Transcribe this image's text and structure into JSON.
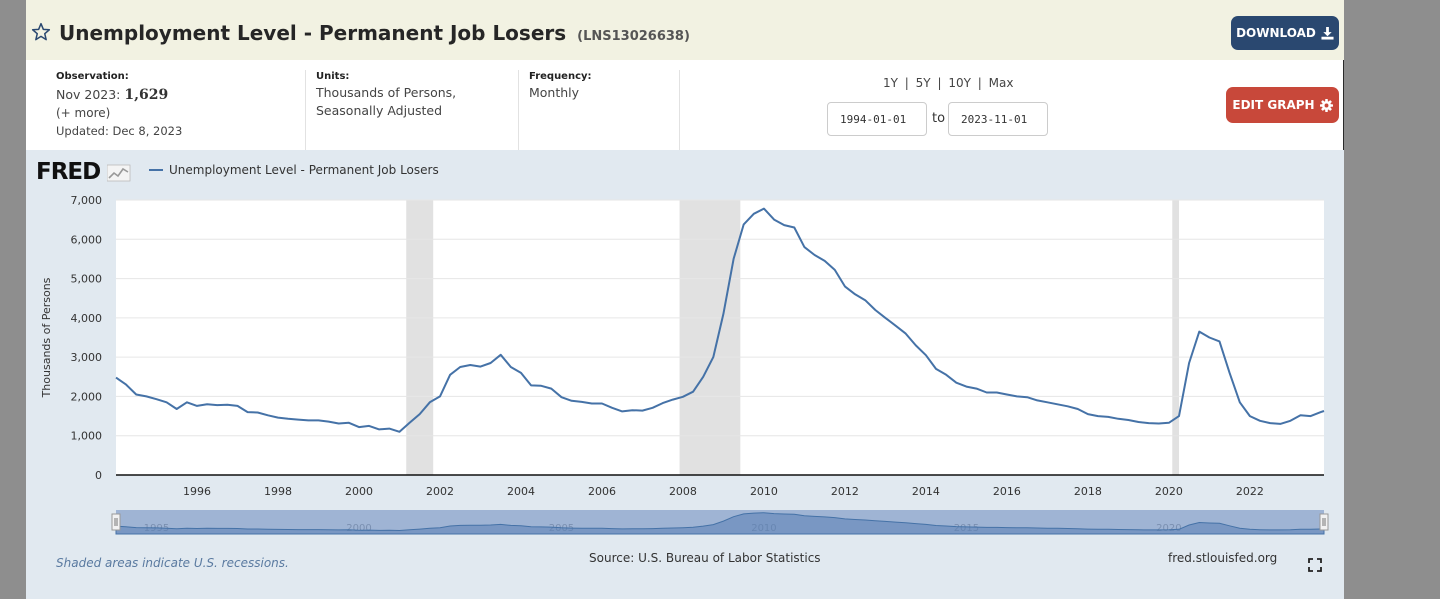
{
  "header": {
    "title": "Unemployment Level - Permanent Job Losers",
    "series_id": "(LNS13026638)",
    "download_label": "DOWNLOAD",
    "edit_label": "EDIT GRAPH"
  },
  "meta": {
    "observation_label": "Observation:",
    "observation_date": "Nov 2023:",
    "observation_value": "1,629",
    "more_link": "(+ more)",
    "updated": "Updated: Dec 8, 2023",
    "units_label": "Units:",
    "units_line1": "Thousands of Persons,",
    "units_line2": "Seasonally Adjusted",
    "frequency_label": "Frequency:",
    "frequency_value": "Monthly"
  },
  "range": {
    "links": [
      "1Y",
      "5Y",
      "10Y",
      "Max"
    ],
    "start": "1994-01-01",
    "to": "to",
    "end": "2023-11-01"
  },
  "chart": {
    "logo": "FRED",
    "legend": "Unemployment Level - Permanent Job Losers",
    "ylabel": "Thousands of Persons",
    "recession_note": "Shaded areas indicate U.S. recessions.",
    "source": "Source: U.S. Bureau of Labor Statistics",
    "url": "fred.stlouisfed.org"
  },
  "chart_data": {
    "type": "line",
    "series": [
      {
        "name": "Unemployment Level - Permanent Job Losers",
        "points": [
          [
            1994.0,
            2480
          ],
          [
            1994.25,
            2300
          ],
          [
            1994.5,
            2050
          ],
          [
            1994.75,
            2000
          ],
          [
            1995.0,
            1930
          ],
          [
            1995.25,
            1850
          ],
          [
            1995.5,
            1680
          ],
          [
            1995.75,
            1850
          ],
          [
            1996.0,
            1760
          ],
          [
            1996.25,
            1800
          ],
          [
            1996.5,
            1780
          ],
          [
            1996.75,
            1790
          ],
          [
            1997.0,
            1760
          ],
          [
            1997.25,
            1600
          ],
          [
            1997.5,
            1590
          ],
          [
            1997.75,
            1520
          ],
          [
            1998.0,
            1460
          ],
          [
            1998.25,
            1430
          ],
          [
            1998.5,
            1410
          ],
          [
            1998.75,
            1390
          ],
          [
            1999.0,
            1390
          ],
          [
            1999.25,
            1360
          ],
          [
            1999.5,
            1310
          ],
          [
            1999.75,
            1330
          ],
          [
            2000.0,
            1220
          ],
          [
            2000.25,
            1250
          ],
          [
            2000.5,
            1160
          ],
          [
            2000.75,
            1180
          ],
          [
            2001.0,
            1100
          ],
          [
            2001.25,
            1330
          ],
          [
            2001.5,
            1550
          ],
          [
            2001.75,
            1850
          ],
          [
            2002.0,
            2000
          ],
          [
            2002.25,
            2550
          ],
          [
            2002.5,
            2750
          ],
          [
            2002.75,
            2800
          ],
          [
            2003.0,
            2760
          ],
          [
            2003.25,
            2850
          ],
          [
            2003.5,
            3060
          ],
          [
            2003.75,
            2750
          ],
          [
            2004.0,
            2600
          ],
          [
            2004.25,
            2280
          ],
          [
            2004.5,
            2270
          ],
          [
            2004.75,
            2200
          ],
          [
            2005.0,
            1980
          ],
          [
            2005.25,
            1890
          ],
          [
            2005.5,
            1860
          ],
          [
            2005.75,
            1820
          ],
          [
            2006.0,
            1820
          ],
          [
            2006.25,
            1710
          ],
          [
            2006.5,
            1620
          ],
          [
            2006.75,
            1650
          ],
          [
            2007.0,
            1640
          ],
          [
            2007.25,
            1710
          ],
          [
            2007.5,
            1830
          ],
          [
            2007.75,
            1920
          ],
          [
            2008.0,
            1990
          ],
          [
            2008.25,
            2120
          ],
          [
            2008.5,
            2500
          ],
          [
            2008.75,
            3000
          ],
          [
            2009.0,
            4100
          ],
          [
            2009.25,
            5500
          ],
          [
            2009.5,
            6380
          ],
          [
            2009.75,
            6650
          ],
          [
            2010.0,
            6780
          ],
          [
            2010.25,
            6500
          ],
          [
            2010.5,
            6360
          ],
          [
            2010.75,
            6300
          ],
          [
            2011.0,
            5800
          ],
          [
            2011.25,
            5600
          ],
          [
            2011.5,
            5450
          ],
          [
            2011.75,
            5220
          ],
          [
            2012.0,
            4800
          ],
          [
            2012.25,
            4600
          ],
          [
            2012.5,
            4450
          ],
          [
            2012.75,
            4200
          ],
          [
            2013.0,
            4000
          ],
          [
            2013.25,
            3800
          ],
          [
            2013.5,
            3600
          ],
          [
            2013.75,
            3300
          ],
          [
            2014.0,
            3050
          ],
          [
            2014.25,
            2700
          ],
          [
            2014.5,
            2550
          ],
          [
            2014.75,
            2350
          ],
          [
            2015.0,
            2250
          ],
          [
            2015.25,
            2200
          ],
          [
            2015.5,
            2100
          ],
          [
            2015.75,
            2100
          ],
          [
            2016.0,
            2050
          ],
          [
            2016.25,
            2000
          ],
          [
            2016.5,
            1980
          ],
          [
            2016.75,
            1900
          ],
          [
            2017.0,
            1850
          ],
          [
            2017.25,
            1800
          ],
          [
            2017.5,
            1750
          ],
          [
            2017.75,
            1680
          ],
          [
            2018.0,
            1550
          ],
          [
            2018.25,
            1500
          ],
          [
            2018.5,
            1480
          ],
          [
            2018.75,
            1430
          ],
          [
            2019.0,
            1400
          ],
          [
            2019.25,
            1350
          ],
          [
            2019.5,
            1320
          ],
          [
            2019.75,
            1310
          ],
          [
            2020.0,
            1330
          ],
          [
            2020.25,
            1500
          ],
          [
            2020.5,
            2850
          ],
          [
            2020.75,
            3650
          ],
          [
            2021.0,
            3500
          ],
          [
            2021.25,
            3400
          ],
          [
            2021.5,
            2600
          ],
          [
            2021.75,
            1850
          ],
          [
            2022.0,
            1500
          ],
          [
            2022.25,
            1380
          ],
          [
            2022.5,
            1320
          ],
          [
            2022.75,
            1300
          ],
          [
            2023.0,
            1380
          ],
          [
            2023.25,
            1520
          ],
          [
            2023.5,
            1500
          ],
          [
            2023.75,
            1600
          ],
          [
            2023.83,
            1629
          ]
        ]
      }
    ],
    "recessions": [
      [
        2001.167,
        2001.833
      ],
      [
        2007.917,
        2009.417
      ],
      [
        2020.083,
        2020.25
      ]
    ],
    "xlim": [
      1994.0,
      2023.83
    ],
    "ylim": [
      0,
      7000
    ],
    "xticks": [
      1996,
      1998,
      2000,
      2002,
      2004,
      2006,
      2008,
      2010,
      2012,
      2014,
      2016,
      2018,
      2020,
      2022
    ],
    "yticks": [
      0,
      1000,
      2000,
      3000,
      4000,
      5000,
      6000,
      7000
    ],
    "ytick_labels": [
      "0",
      "1,000",
      "2,000",
      "3,000",
      "4,000",
      "5,000",
      "6,000",
      "7,000"
    ],
    "navigator_labels": [
      "1995",
      "2000",
      "2005",
      "2010",
      "2015",
      "2020"
    ],
    "grid": true,
    "legend_position": "top-left"
  },
  "colors": {
    "line": "#4572a7",
    "recession": "#e1e1e1",
    "chart_bg": "#e1e9f0",
    "download_button": "#2a4870",
    "edit_button": "#c8483a"
  },
  "icons": [
    "star-icon",
    "download-icon",
    "gear-icon",
    "fullscreen-icon",
    "fred-sparkline-icon"
  ]
}
